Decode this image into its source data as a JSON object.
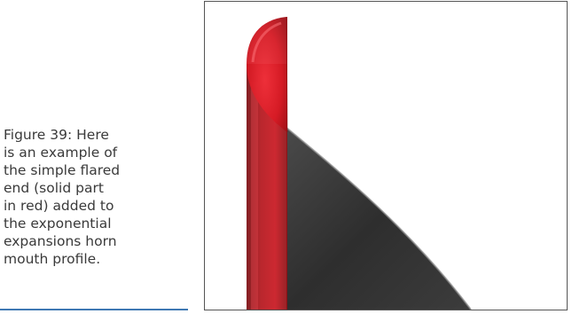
{
  "figure": {
    "caption_lines": [
      "Figure 39: Here",
      "is an example of",
      "the simple flared",
      "end (solid part",
      "in red) added to",
      "the exponential",
      "expansions horn",
      "mouth profile."
    ],
    "colors": {
      "flare_red": "#c8161f",
      "horn_profile_dark": "#3a3a3a",
      "caption_rule": "#3f78b3"
    }
  }
}
